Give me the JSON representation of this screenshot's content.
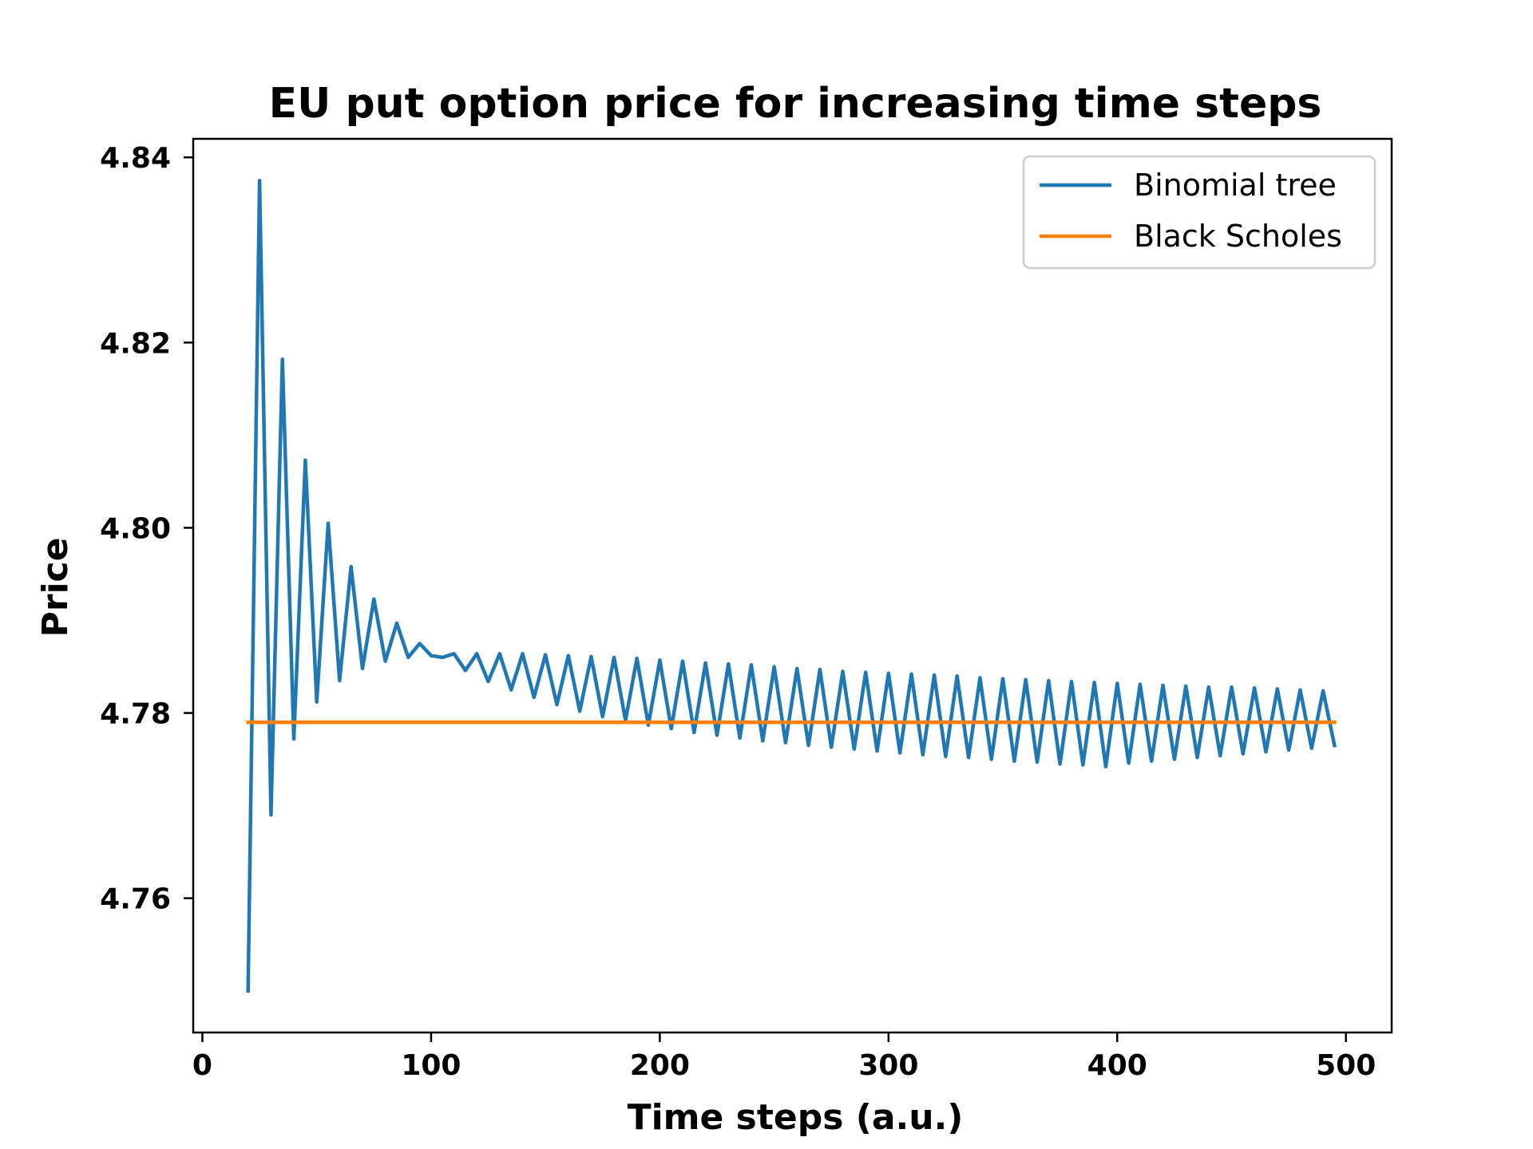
{
  "chart_data": {
    "type": "line",
    "title": "EU put option price for increasing time steps",
    "xlabel": "Time steps (a.u.)",
    "ylabel": "Price",
    "xlim": [
      -4,
      520
    ],
    "ylim": [
      4.7455,
      4.842
    ],
    "xticks": [
      0,
      100,
      200,
      300,
      400,
      500
    ],
    "yticks": [
      4.76,
      4.78,
      4.8,
      4.82,
      4.84
    ],
    "xtick_labels": [
      "0",
      "100",
      "200",
      "300",
      "400",
      "500"
    ],
    "ytick_labels": [
      "4.76",
      "4.78",
      "4.80",
      "4.82",
      "4.84"
    ],
    "grid": false,
    "legend_position": "top-right",
    "series": [
      {
        "name": "Binomial tree",
        "color": "#1f77b4",
        "x": [
          20,
          25,
          30,
          35,
          40,
          45,
          50,
          55,
          60,
          65,
          70,
          75,
          80,
          85,
          90,
          95,
          100,
          105,
          110,
          115,
          120,
          125,
          130,
          135,
          140,
          145,
          150,
          155,
          160,
          165,
          170,
          175,
          180,
          185,
          190,
          195,
          200,
          205,
          210,
          215,
          220,
          225,
          230,
          235,
          240,
          245,
          250,
          255,
          260,
          265,
          270,
          275,
          280,
          285,
          290,
          295,
          300,
          305,
          310,
          315,
          320,
          325,
          330,
          335,
          340,
          345,
          350,
          355,
          360,
          365,
          370,
          375,
          380,
          385,
          390,
          395,
          400,
          405,
          410,
          415,
          420,
          425,
          430,
          435,
          440,
          445,
          450,
          455,
          460,
          465,
          470,
          475,
          480,
          485,
          490,
          495
        ],
        "y": [
          4.75,
          4.8375,
          4.769,
          4.8182,
          4.7772,
          4.8073,
          4.7812,
          4.8005,
          4.7835,
          4.7958,
          4.7848,
          4.7923,
          4.7856,
          4.7897,
          4.786,
          4.7875,
          4.7862,
          4.786,
          4.7864,
          4.7846,
          4.7864,
          4.7834,
          4.7864,
          4.7825,
          4.7864,
          4.7817,
          4.7863,
          4.7809,
          4.7862,
          4.7802,
          4.7861,
          4.7796,
          4.786,
          4.7792,
          4.7859,
          4.7787,
          4.7857,
          4.7783,
          4.7856,
          4.7779,
          4.7854,
          4.7776,
          4.7853,
          4.7773,
          4.7852,
          4.777,
          4.785,
          4.7768,
          4.7848,
          4.7765,
          4.7847,
          4.7763,
          4.7845,
          4.7761,
          4.7844,
          4.7759,
          4.7843,
          4.7757,
          4.7842,
          4.7755,
          4.7841,
          4.7753,
          4.784,
          4.7752,
          4.7838,
          4.775,
          4.7837,
          4.7748,
          4.7836,
          4.7747,
          4.7835,
          4.7745,
          4.7834,
          4.7744,
          4.7833,
          4.7742,
          4.7832,
          4.7746,
          4.7831,
          4.7748,
          4.783,
          4.775,
          4.7829,
          4.7752,
          4.7828,
          4.7754,
          4.7828,
          4.7756,
          4.7827,
          4.7758,
          4.7826,
          4.776,
          4.7825,
          4.7762,
          4.7824,
          4.7765
        ]
      },
      {
        "name": "Black Scholes",
        "color": "#ff7f0e",
        "x": [
          20,
          495
        ],
        "y": [
          4.779,
          4.779
        ]
      }
    ]
  }
}
